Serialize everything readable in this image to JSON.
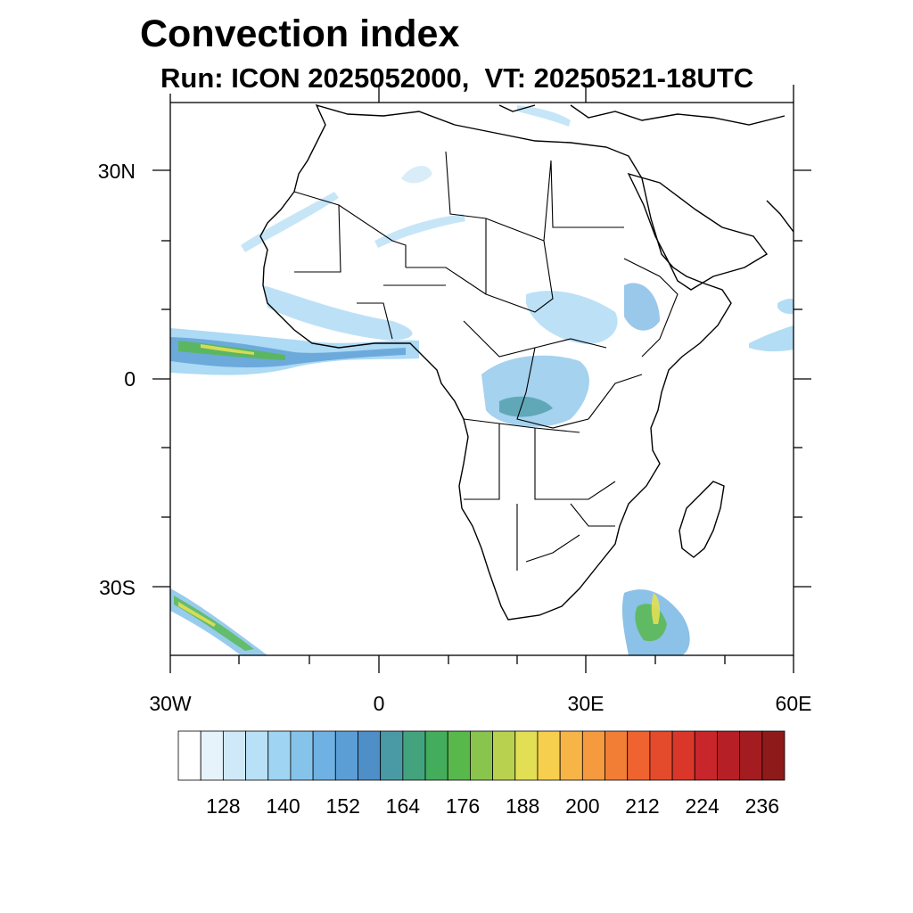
{
  "header": {
    "title": "Convection index",
    "subtitle": "Run: ICON 2025052000,  VT: 20250521-18UTC"
  },
  "map": {
    "lat_labels": [
      "30N",
      "0",
      "30S"
    ],
    "lon_labels": [
      "30W",
      "0",
      "30E",
      "60E"
    ],
    "region": "Africa",
    "extent": {
      "lon_min": -30,
      "lon_max": 60,
      "lat_min": -40,
      "lat_max": 40
    }
  },
  "colorbar": {
    "tick_labels": [
      "128",
      "140",
      "152",
      "164",
      "176",
      "188",
      "200",
      "212",
      "224",
      "236"
    ],
    "colors": [
      "#ffffff",
      "#e6f3fb",
      "#cfe9f8",
      "#b8e0f6",
      "#9fd4f3",
      "#86c3ea",
      "#6fb1e2",
      "#5b9ed6",
      "#4e8fc8",
      "#4a9aa6",
      "#43a37d",
      "#44ad5c",
      "#58b84c",
      "#89c44c",
      "#b8d14e",
      "#e3df54",
      "#f6cf4f",
      "#f7b548",
      "#f69a3f",
      "#f27e36",
      "#ee632f",
      "#e44b2c",
      "#da362a",
      "#c8262a",
      "#b51f25",
      "#a41c20",
      "#8e1a1a"
    ]
  }
}
